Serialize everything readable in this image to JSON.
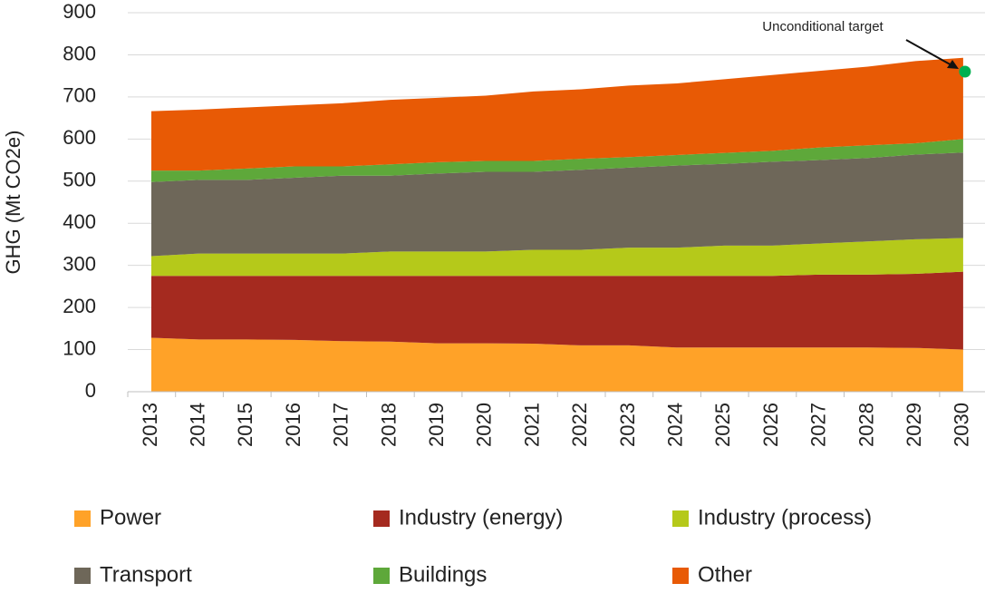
{
  "chart_data": {
    "type": "stacked_area",
    "y_label": "GHG (Mt CO2e)",
    "categories": [
      "2013",
      "2014",
      "2015",
      "2016",
      "2017",
      "2018",
      "2019",
      "2020",
      "2021",
      "2022",
      "2023",
      "2024",
      "2025",
      "2026",
      "2027",
      "2028",
      "2029",
      "2030"
    ],
    "series": [
      {
        "name": "Power",
        "color": "#ffa228",
        "values": [
          128,
          124,
          124,
          123,
          120,
          119,
          115,
          115,
          114,
          110,
          110,
          105,
          105,
          105,
          105,
          105,
          104,
          100
        ]
      },
      {
        "name": "Industry (energy)",
        "color": "#a52a1f",
        "values": [
          147,
          151,
          151,
          152,
          155,
          156,
          160,
          160,
          161,
          165,
          165,
          170,
          170,
          170,
          173,
          173,
          176,
          185
        ]
      },
      {
        "name": "Industry (process)",
        "color": "#b5c91a",
        "values": [
          47,
          53,
          53,
          53,
          53,
          58,
          58,
          58,
          62,
          62,
          67,
          67,
          72,
          72,
          74,
          79,
          82,
          80
        ]
      },
      {
        "name": "Transport",
        "color": "#6e6759",
        "values": [
          176,
          175,
          175,
          180,
          185,
          180,
          185,
          189,
          185,
          190,
          190,
          195,
          194,
          199,
          198,
          198,
          201,
          203
        ]
      },
      {
        "name": "Buildings",
        "color": "#5ea83a",
        "values": [
          27,
          22,
          27,
          27,
          22,
          27,
          27,
          26,
          26,
          26,
          25,
          25,
          26,
          26,
          30,
          30,
          27,
          32
        ]
      },
      {
        "name": "Other",
        "color": "#e85a05",
        "values": [
          141,
          145,
          145,
          145,
          150,
          153,
          153,
          155,
          165,
          165,
          170,
          170,
          175,
          180,
          182,
          187,
          195,
          193
        ]
      }
    ],
    "annotation": {
      "text": "Unconditional target",
      "value": 760,
      "color": "#00b050"
    },
    "ylim": [
      0,
      900
    ],
    "yticks": [
      0,
      100,
      200,
      300,
      400,
      500,
      600,
      700,
      800,
      900
    ],
    "grid": true
  }
}
